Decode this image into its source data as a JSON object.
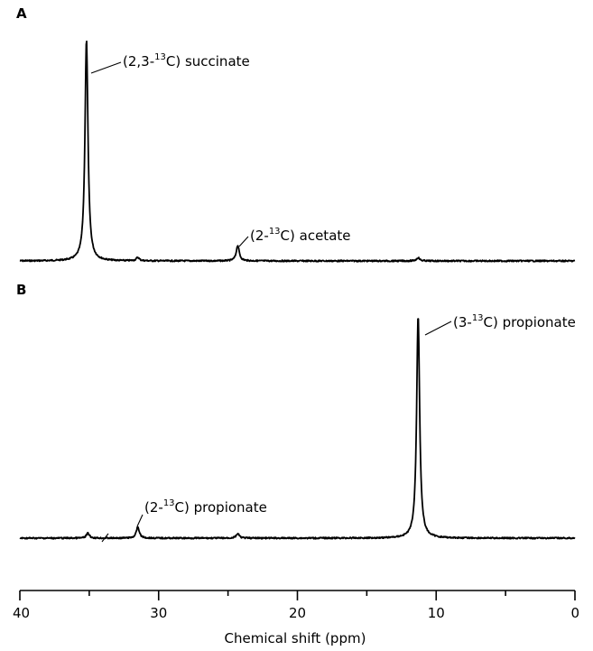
{
  "chart_data": {
    "type": "line",
    "xlabel": "Chemical shift (ppm)",
    "xlim": [
      40,
      0
    ],
    "x_reversed": true,
    "xticks": [
      "40",
      "30",
      "20",
      "10",
      "0"
    ],
    "grid": false,
    "panels": [
      {
        "letter": "A",
        "peaks": [
          {
            "x": 35.2,
            "height": 1.0,
            "label": {
              "pre": "(2,3-",
              "iso": "13",
              "post": "C) succinate"
            }
          },
          {
            "x": 24.3,
            "height": 0.07,
            "label": {
              "pre": "(2-",
              "iso": "13",
              "post": "C) acetate"
            }
          },
          {
            "x": 31.5,
            "height": 0.015,
            "label": null
          },
          {
            "x": 11.3,
            "height": 0.015,
            "label": null
          }
        ]
      },
      {
        "letter": "B",
        "peaks": [
          {
            "x": 11.3,
            "height": 1.0,
            "label": {
              "pre": "(3-",
              "iso": "13",
              "post": "C) propionate"
            }
          },
          {
            "x": 31.5,
            "height": 0.05,
            "label": {
              "pre": "(2-",
              "iso": "13",
              "post": "C) propionate"
            }
          },
          {
            "x": 35.1,
            "height": 0.022,
            "label": null
          },
          {
            "x": 24.3,
            "height": 0.02,
            "label": null
          }
        ]
      }
    ]
  }
}
